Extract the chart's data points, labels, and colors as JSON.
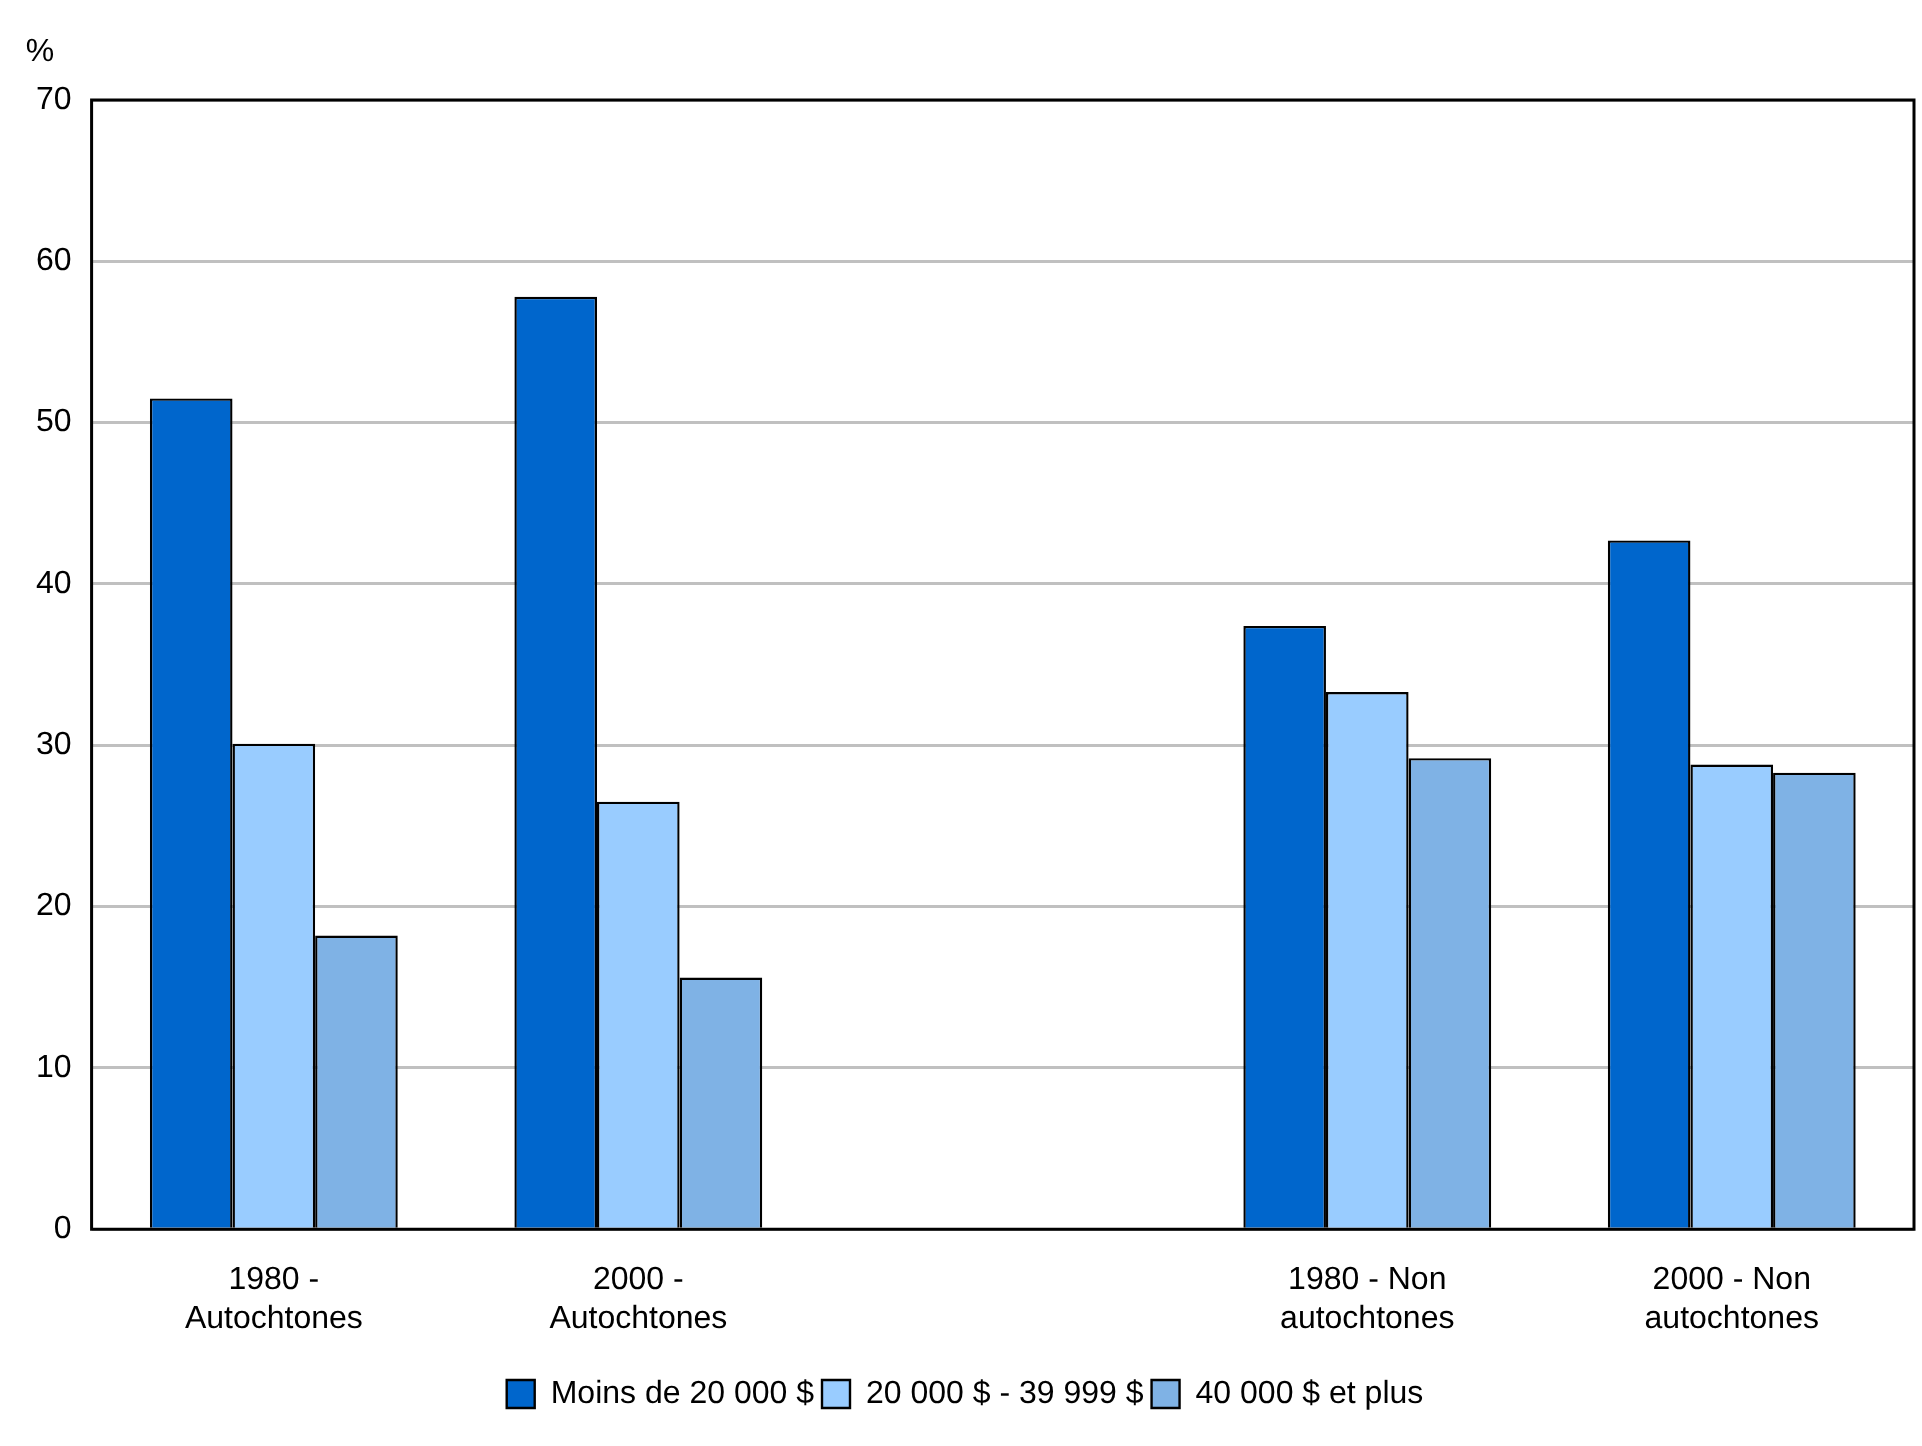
{
  "chart_data": {
    "type": "bar",
    "ylabel": "%",
    "categories": [
      "1980 - Autochtones",
      "2000 - Autochtones",
      null,
      "1980 - Non autochtones",
      "2000 - Non autochtones"
    ],
    "series": [
      {
        "name": "Moins de 20 000 $",
        "color": "#0066cc",
        "values": [
          51.5,
          57.8,
          null,
          37.4,
          42.7
        ]
      },
      {
        "name": "20 000 $ - 39 999 $",
        "color": "#99ccff",
        "values": [
          30.1,
          26.5,
          null,
          33.3,
          28.8
        ]
      },
      {
        "name": "40 000 $ et plus",
        "color": "#7fb2e5",
        "values": [
          18.2,
          15.6,
          null,
          29.2,
          28.3
        ]
      }
    ],
    "ylim": [
      0,
      70
    ],
    "yticks": [
      0,
      10,
      20,
      30,
      40,
      50,
      60,
      70
    ],
    "grid": "y",
    "legend": "bottom"
  }
}
